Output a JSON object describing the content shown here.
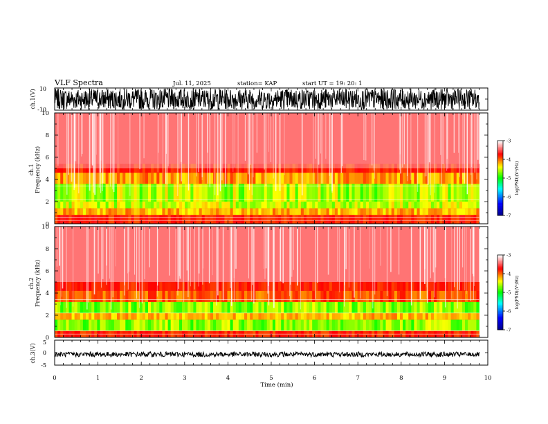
{
  "header": {
    "title": "VLF Spectra",
    "date": "Jul. 11, 2025",
    "station": "station= KAP",
    "start": "start UT =   19: 20: 1"
  },
  "chart_data": [
    {
      "type": "line",
      "name": "ch1-waveform",
      "ylabel": "ch.1(V)",
      "ylim": [
        -10,
        10
      ],
      "ytick_labels": [
        "10",
        "-10"
      ],
      "xlim": [
        0,
        10
      ]
    },
    {
      "type": "heatmap",
      "name": "ch1-spectrogram",
      "ylabel_line1": "ch.1",
      "ylabel_line2": "Frequency (kHz)",
      "ylim": [
        0,
        10
      ],
      "ytick_labels": [
        "0",
        "2",
        "4",
        "6",
        "8",
        "10"
      ],
      "xlim": [
        0,
        9.8
      ],
      "colorbar": {
        "label": "log(PSD)(V²/Hz)",
        "range": [
          -7,
          -3
        ],
        "tick_labels": [
          "-3",
          "-4",
          "-5",
          "-6",
          "-7"
        ]
      }
    },
    {
      "type": "heatmap",
      "name": "ch2-spectrogram",
      "ylabel_line1": "ch.2",
      "ylabel_line2": "Frequency (kHz)",
      "ylim": [
        0,
        10
      ],
      "ytick_labels": [
        "0",
        "2",
        "4",
        "6",
        "8",
        "10"
      ],
      "xlim": [
        0,
        9.8
      ],
      "colorbar": {
        "label": "log(PSD)(V²/Hz)",
        "range": [
          -7,
          -3
        ],
        "tick_labels": [
          "-3",
          "-4",
          "-5",
          "-6",
          "-7"
        ]
      }
    },
    {
      "type": "line",
      "name": "ch3-waveform",
      "ylabel": "ch.3(V)",
      "ylim": [
        -5,
        5
      ],
      "ytick_labels": [
        "5",
        "0",
        "-5"
      ],
      "xlim": [
        0,
        10
      ]
    }
  ],
  "xaxis": {
    "label": "Time (min)",
    "range": [
      0,
      10
    ],
    "tick_labels": [
      "0",
      "1",
      "2",
      "3",
      "4",
      "5",
      "6",
      "7",
      "8",
      "9",
      "10"
    ]
  },
  "colors": {
    "spec_background": "#ff2a2a",
    "jet_low": "#00008f",
    "jet_high": "#ffffff"
  }
}
